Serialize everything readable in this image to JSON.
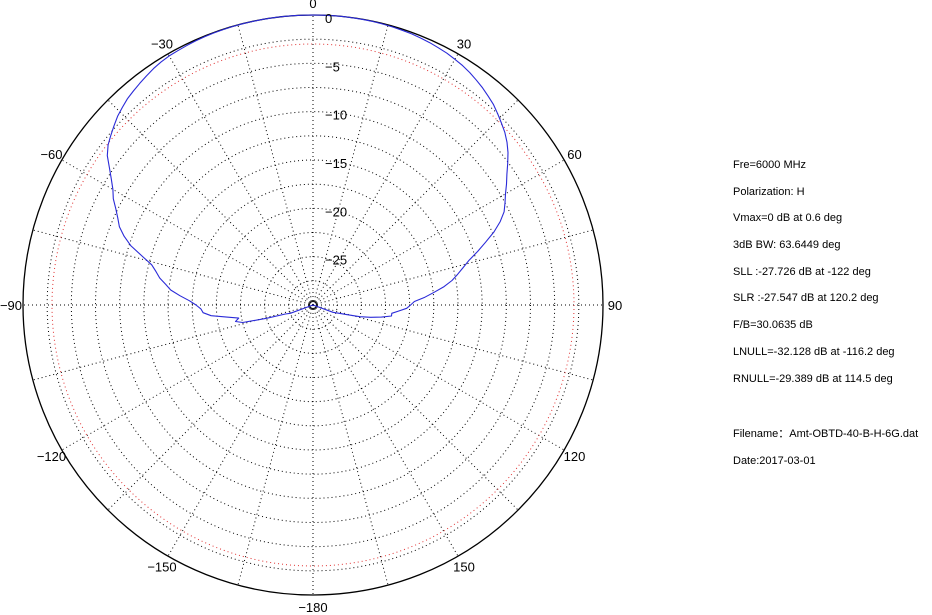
{
  "chart_data": {
    "type": "line",
    "subtype": "polar",
    "title": "",
    "angle_unit": "deg",
    "angle_ticks": [
      "0",
      "30",
      "60",
      "90",
      "120",
      "150",
      "−180",
      "−150",
      "−120",
      "−90",
      "−60",
      "−30"
    ],
    "angle_tick_values": [
      0,
      30,
      60,
      90,
      120,
      150,
      180,
      -150,
      -120,
      -90,
      -60,
      -30
    ],
    "radial_ticks": [
      "0",
      "−5",
      "−10",
      "−15",
      "−20",
      "−25"
    ],
    "radial_tick_values": [
      0,
      -5,
      -10,
      -15,
      -20,
      -25
    ],
    "radial_range": [
      -30,
      0
    ],
    "grid": true,
    "reference_circle_db": -3,
    "series": [
      {
        "color": "#2a2ad8",
        "angles": [
          -110,
          -108,
          -106,
          -104,
          -102,
          -100,
          -98,
          -96,
          -94,
          -92,
          -90,
          -88,
          -86,
          -84,
          -82,
          -80,
          -78,
          -76,
          -74,
          -72,
          -70,
          -68,
          -66,
          -64,
          -62,
          -60,
          -58,
          -56,
          -54,
          -52,
          -50,
          -48,
          -46,
          -44,
          -42,
          -40,
          -38,
          -36,
          -34,
          -32,
          -30,
          -28,
          -26,
          -24,
          -22,
          -20,
          -18,
          -16,
          -14,
          -12,
          -10,
          -8,
          -6,
          -4,
          -2,
          0,
          2,
          4,
          6,
          8,
          10,
          12,
          14,
          16,
          18,
          20,
          22,
          24,
          26,
          28,
          30,
          32,
          34,
          36,
          38,
          40,
          42,
          44,
          46,
          48,
          50,
          52,
          54,
          56,
          58,
          60,
          62,
          64,
          66,
          68,
          70,
          72,
          74,
          76,
          78,
          80,
          82,
          84,
          86,
          88,
          90,
          92,
          94,
          96,
          98,
          100,
          102,
          104,
          106,
          108,
          110
        ],
        "values_db": [
          -27.5,
          -27.0,
          -25.0,
          -22.5,
          -21.8,
          -22.2,
          -21.0,
          -19.4,
          -18.6,
          -18.4,
          -17.9,
          -17.2,
          -16.2,
          -15.2,
          -14.6,
          -13.9,
          -13.4,
          -12.8,
          -11.6,
          -10.2,
          -9.2,
          -8.4,
          -7.9,
          -7.3,
          -6.6,
          -6.1,
          -5.4,
          -4.6,
          -3.7,
          -3.1,
          -2.7,
          -2.3,
          -1.9,
          -1.6,
          -1.3,
          -1.1,
          -0.9,
          -0.7,
          -0.5,
          -0.35,
          -0.25,
          -0.2,
          -0.15,
          -0.1,
          -0.07,
          -0.05,
          -0.03,
          -0.02,
          -0.01,
          -0.01,
          0,
          0,
          0,
          0,
          0,
          0,
          0,
          0,
          0,
          -0.01,
          -0.02,
          -0.03,
          -0.05,
          -0.08,
          -0.12,
          -0.16,
          -0.22,
          -0.3,
          -0.4,
          -0.5,
          -0.65,
          -0.8,
          -1.0,
          -1.25,
          -1.5,
          -1.8,
          -2.1,
          -2.5,
          -2.9,
          -3.3,
          -3.8,
          -4.4,
          -5.1,
          -5.8,
          -6.4,
          -7.0,
          -7.5,
          -8.0,
          -8.8,
          -9.8,
          -11.0,
          -12.1,
          -13.2,
          -14.0,
          -14.7,
          -15.4,
          -16.3,
          -17.4,
          -18.4,
          -19.5,
          -19.9,
          -20.3,
          -21.1,
          -21.8,
          -21.8,
          -22.8,
          -23.9,
          -25.0,
          -26.4,
          -27.3,
          -27.8
        ]
      }
    ]
  },
  "info": {
    "freq": "Fre=6000 MHz",
    "polarization": "Polarization: H",
    "vmax": "Vmax=0 dB at 0.6 deg",
    "bw": "3dB BW: 63.6449 deg",
    "sll": "SLL :-27.726 dB at  -122 deg",
    "slr": "SLR :-27.547 dB at  120.2 deg",
    "fb": "F/B=30.0635 dB",
    "lnull": "LNULL=-32.128 dB at -116.2 deg",
    "rnull": "RNULL=-29.389 dB at 114.5 deg",
    "filename": "Filename：Amt-OBTD-40-B-H-6G.dat",
    "date": "Date:2017-03-01"
  }
}
